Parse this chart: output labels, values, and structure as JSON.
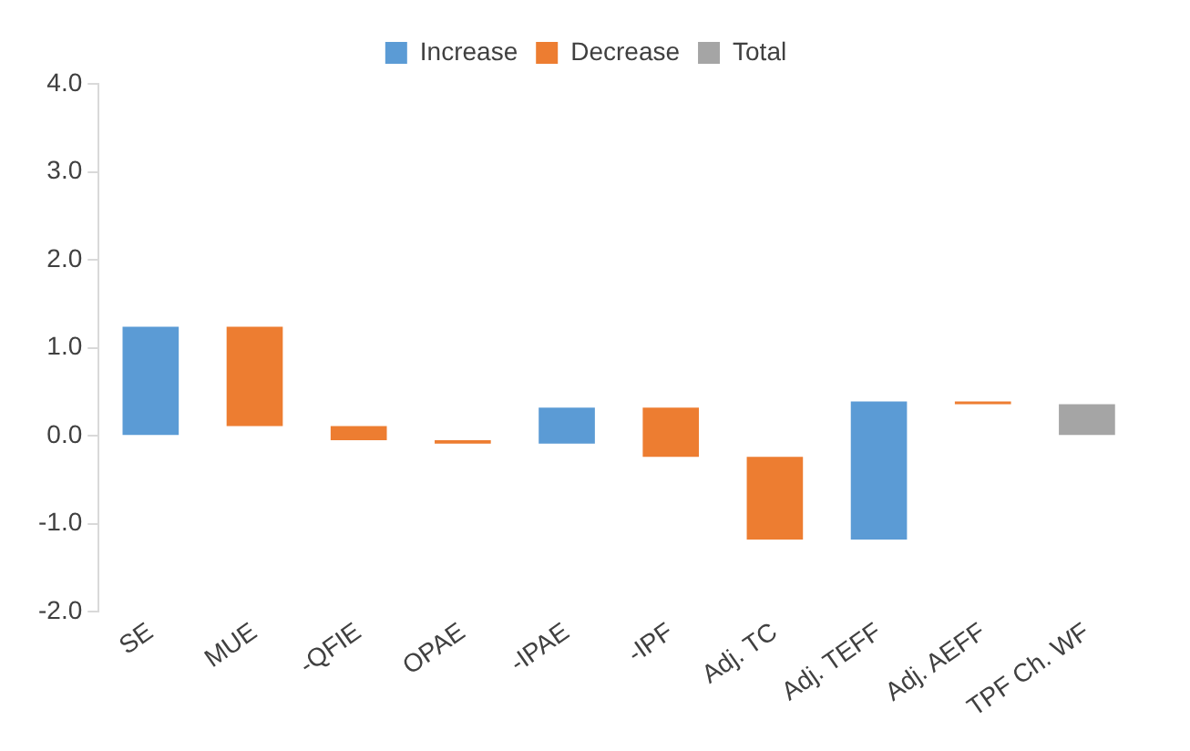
{
  "chart_data": {
    "type": "bar",
    "categories": [
      "SE",
      "MUE",
      "-QFIE",
      "OPAE",
      "-IPAE",
      "-IPF",
      "Adj. TC",
      "Adj. TEFF",
      "Adj. AEFF",
      "TPF Ch. WF"
    ],
    "series": [
      {
        "name": "Increase",
        "color": "#5b9bd5",
        "values": [
          1.24,
          null,
          null,
          null,
          0.41,
          null,
          null,
          1.57,
          null,
          null
        ],
        "base": [
          0,
          null,
          null,
          null,
          -0.09,
          null,
          null,
          -1.18,
          null,
          null
        ]
      },
      {
        "name": "Decrease",
        "color": "#ed7d31",
        "values": [
          null,
          -1.13,
          -0.16,
          -0.04,
          null,
          -0.56,
          -0.94,
          null,
          -0.03,
          null
        ],
        "base": [
          null,
          1.24,
          0.11,
          -0.05,
          null,
          0.32,
          -0.24,
          null,
          0.39,
          null
        ]
      },
      {
        "name": "Total",
        "color": "#a5a5a5",
        "values": [
          null,
          null,
          null,
          null,
          null,
          null,
          null,
          null,
          null,
          0.36
        ],
        "base": [
          null,
          null,
          null,
          null,
          null,
          null,
          null,
          null,
          null,
          0
        ]
      }
    ],
    "ylim": [
      -2,
      4
    ],
    "yticks": [
      {
        "value": -2,
        "label": "-2.0"
      },
      {
        "value": -1,
        "label": "-1.0"
      },
      {
        "value": 0,
        "label": "0.0"
      },
      {
        "value": 1,
        "label": "1.0"
      },
      {
        "value": 2,
        "label": "2.0"
      },
      {
        "value": 3,
        "label": "3.0"
      },
      {
        "value": 4,
        "label": "4.0"
      }
    ],
    "grid": false,
    "legend": "top"
  }
}
